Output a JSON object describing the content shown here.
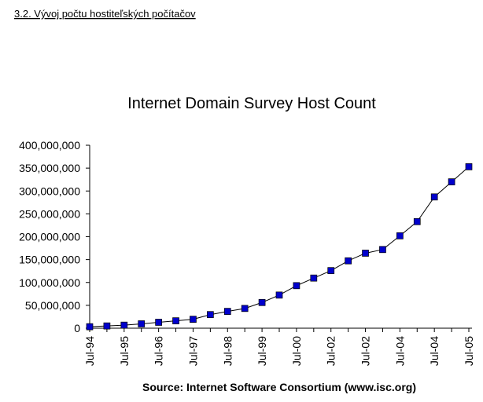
{
  "heading": "3.2. Vývoj počtu hostiteľských počítačov",
  "chart_data": {
    "type": "line",
    "title": "Internet Domain Survey Host Count",
    "x_label": "Source: Internet Software Consortium (www.isc.org)",
    "categories": [
      "Jul-94",
      null,
      "Jul-95",
      null,
      "Jul-96",
      null,
      "Jul-97",
      null,
      "Jul-98",
      null,
      "Jul-99",
      null,
      "Jul-00",
      null,
      "Jul-02",
      null,
      "Jul-02",
      null,
      "Jul-04",
      null,
      "Jul-04",
      null,
      "Jul-05"
    ],
    "series": [
      {
        "name": "Host Count",
        "color": "#0000cc",
        "values": [
          3200000,
          4900000,
          6600000,
          9500000,
          12900000,
          16100000,
          19500000,
          29700000,
          36700000,
          43200000,
          56200000,
          72400000,
          93000000,
          109600000,
          125900000,
          147300000,
          164000000,
          172000000,
          202000000,
          233000000,
          287000000,
          320000000,
          353000000
        ]
      }
    ],
    "ylim": [
      0,
      400000000
    ],
    "yticks": [
      0,
      {
        "value": 50000000,
        "label": "50,000,000"
      },
      {
        "value": 100000000,
        "label": "100,000,000"
      },
      {
        "value": 150000000,
        "label": "150,000,000"
      },
      {
        "value": 200000000,
        "label": "200,000,000"
      },
      {
        "value": 250000000,
        "label": "250,000,000"
      },
      {
        "value": 300000000,
        "label": "300,000,000"
      },
      {
        "value": 350000000,
        "label": "350,000,000"
      },
      {
        "value": 400000000,
        "label": "400,000,000"
      }
    ],
    "grid": false
  }
}
